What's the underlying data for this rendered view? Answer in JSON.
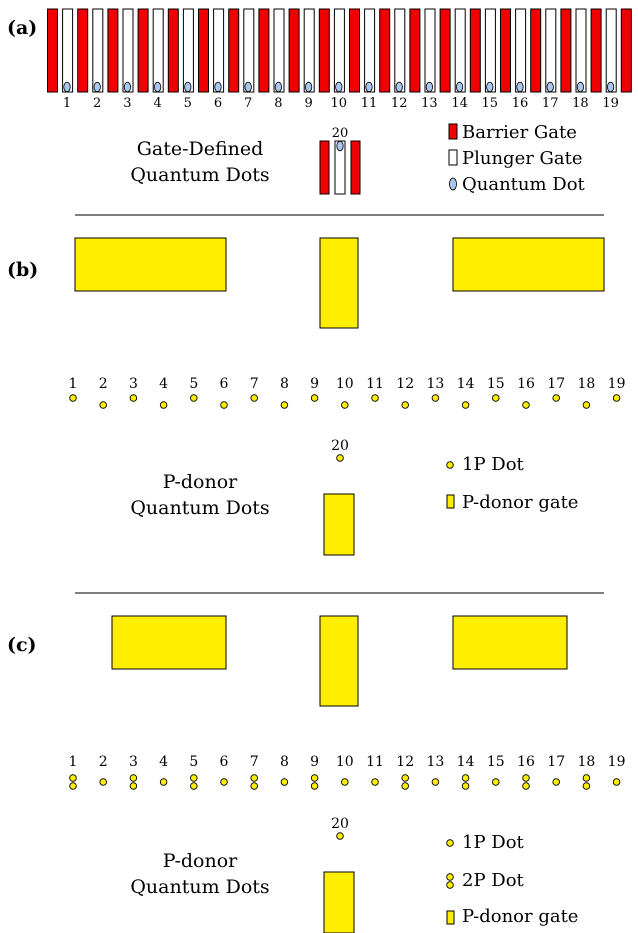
{
  "colors": {
    "barrier": "#f00000",
    "plunger": "#ffffff",
    "dot": "#a8c8f0",
    "gate": "#ffee00",
    "divider": "#333333"
  },
  "panel_a": {
    "label": "(a)",
    "title_line1": "Gate-Defined",
    "title_line2": "Quantum Dots",
    "dot_numbers": [
      "1",
      "2",
      "3",
      "4",
      "5",
      "6",
      "7",
      "8",
      "9",
      "10",
      "11",
      "12",
      "13",
      "14",
      "15",
      "16",
      "17",
      "18",
      "19"
    ],
    "extra_dot_number": "20",
    "legend": [
      {
        "icon": "barrier-gate-swatch",
        "text": "Barrier Gate"
      },
      {
        "icon": "plunger-gate-swatch",
        "text": "Plunger Gate"
      },
      {
        "icon": "quantum-dot-swatch",
        "text": "Quantum Dot"
      }
    ]
  },
  "panel_b": {
    "label": "(b)",
    "title_line1": "P-donor",
    "title_line2": "Quantum Dots",
    "dot_numbers": [
      "1",
      "2",
      "3",
      "4",
      "5",
      "6",
      "7",
      "8",
      "9",
      "10",
      "11",
      "12",
      "13",
      "14",
      "15",
      "16",
      "17",
      "18",
      "19"
    ],
    "extra_dot_number": "20",
    "legend": [
      {
        "icon": "1p-dot-swatch",
        "text": "1P Dot"
      },
      {
        "icon": "gate-swatch",
        "text": "P-donor gate"
      }
    ]
  },
  "panel_c": {
    "label": "(c)",
    "title_line1": "P-donor",
    "title_line2": "Quantum Dots",
    "dot_numbers": [
      "1",
      "2",
      "3",
      "4",
      "5",
      "6",
      "7",
      "8",
      "9",
      "10",
      "11",
      "12",
      "13",
      "14",
      "15",
      "16",
      "17",
      "18",
      "19"
    ],
    "double_dots": [
      "1",
      "3",
      "5",
      "7",
      "9",
      "12",
      "14",
      "16",
      "18"
    ],
    "extra_dot_number": "20",
    "legend": [
      {
        "icon": "1p-dot-swatch",
        "text": "1P Dot"
      },
      {
        "icon": "2p-dot-swatch",
        "text": "2P Dot"
      },
      {
        "icon": "gate-swatch",
        "text": "P-donor gate"
      }
    ]
  }
}
